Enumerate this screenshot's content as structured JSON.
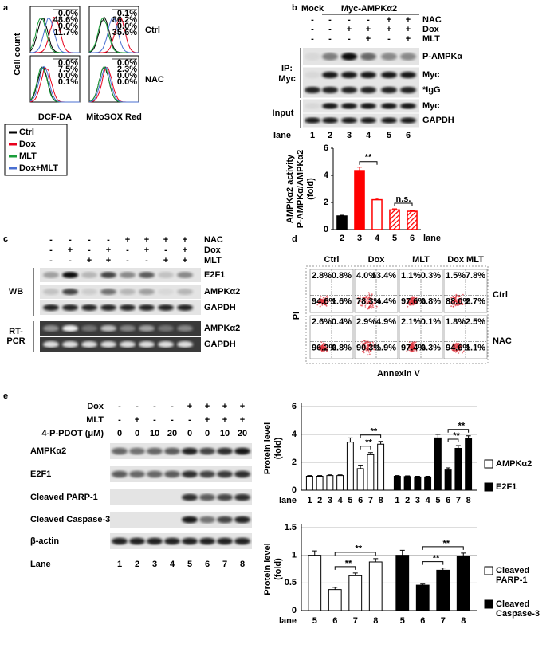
{
  "panels": {
    "a": {
      "label": "a",
      "y_label": "Cell count",
      "rows": [
        "Ctrl",
        "NAC"
      ],
      "columns": [
        "DCF-DA",
        "MitoSOX Red"
      ],
      "percentages": [
        [
          [
            "0.0%",
            "48.6%",
            "0.0%",
            "11.7%"
          ],
          [
            "0.1%",
            "86.2%",
            "0.0%",
            "35.6%"
          ]
        ],
        [
          [
            "0.0%",
            "7.5%",
            "0.0%",
            "0.1%"
          ],
          [
            "0.0%",
            "2.3%",
            "0.0%",
            "0.0%"
          ]
        ]
      ],
      "legend": [
        {
          "name": "Ctrl",
          "color": "#000000"
        },
        {
          "name": "Dox",
          "color": "#e8001c"
        },
        {
          "name": "MLT",
          "color": "#1a9e3a"
        },
        {
          "name": "Dox+MLT",
          "color": "#4a6fd1"
        }
      ]
    },
    "b": {
      "label": "b",
      "mock": "Mock",
      "construct": "Myc-AMPKα2",
      "treatments": [
        {
          "name": "NAC",
          "signs": [
            "-",
            "-",
            "-",
            "-",
            "+",
            "+"
          ]
        },
        {
          "name": "Dox",
          "signs": [
            "-",
            "-",
            "+",
            "+",
            "+",
            "+"
          ]
        },
        {
          "name": "MLT",
          "signs": [
            "-",
            "-",
            "-",
            "+",
            "-",
            "+"
          ]
        }
      ],
      "ip_label": [
        "IP:",
        "Myc"
      ],
      "input_label": "Input",
      "blot_rows": [
        "P-AMPKα",
        "Myc",
        "*IgG",
        "Myc",
        "GAPDH"
      ],
      "lane_label": "lane",
      "lanes": [
        "1",
        "2",
        "3",
        "4",
        "5",
        "6"
      ]
    },
    "c": {
      "label": "c",
      "treatments": [
        {
          "name": "NAC",
          "signs": [
            "-",
            "-",
            "-",
            "-",
            "+",
            "+",
            "+",
            "+"
          ]
        },
        {
          "name": "Dox",
          "signs": [
            "-",
            "+",
            "-",
            "+",
            "-",
            "+",
            "-",
            "+"
          ]
        },
        {
          "name": "MLT",
          "signs": [
            "-",
            "-",
            "+",
            "+",
            "-",
            "-",
            "+",
            "+"
          ]
        }
      ],
      "groups": [
        "WB",
        "RT-PCR"
      ],
      "blot_rows": [
        "E2F1",
        "AMPKα2",
        "GAPDH",
        "AMPKα2",
        "GAPDH"
      ]
    },
    "d": {
      "label": "d",
      "columns": [
        "Ctrl",
        "Dox",
        "MLT",
        "Dox MLT"
      ],
      "rows": [
        "Ctrl",
        "NAC"
      ],
      "quadrants": [
        [
          [
            "2.8%",
            "0.8%",
            "94.6%",
            "1.6%"
          ],
          [
            "4.0%",
            "13.4%",
            "78.3%",
            "4.4%"
          ],
          [
            "1.1%",
            "0.3%",
            "97.6%",
            "0.8%"
          ],
          [
            "1.5%",
            "7.8%",
            "88.0%",
            "2.7%"
          ]
        ],
        [
          [
            "2.6%",
            "0.4%",
            "96.2%",
            "0.8%"
          ],
          [
            "2.9%",
            "4.9%",
            "90.3%",
            "1.9%"
          ],
          [
            "2.1%",
            "0.1%",
            "97.4%",
            "0.3%"
          ],
          [
            "1.8%",
            "2.5%",
            "94.6%",
            "1.1%"
          ]
        ]
      ],
      "y_label": "PI",
      "x_label": "Annexin V"
    },
    "e": {
      "label": "e",
      "treatments": [
        {
          "name": "Dox",
          "signs": [
            "-",
            "-",
            "-",
            "-",
            "+",
            "+",
            "+",
            "+"
          ]
        },
        {
          "name": "MLT",
          "signs": [
            "-",
            "+",
            "-",
            "-",
            "-",
            "+",
            "+",
            "+"
          ]
        },
        {
          "name": "4-P-PDOT (μM)",
          "signs": [
            "0",
            "0",
            "10",
            "20",
            "0",
            "0",
            "10",
            "20"
          ]
        }
      ],
      "blot_rows": [
        "AMPKα2",
        "E2F1",
        "Cleaved PARP-1",
        "Cleaved Caspase-3",
        "β-actin"
      ],
      "lane_label": "Lane",
      "lanes": [
        "1",
        "2",
        "3",
        "4",
        "5",
        "6",
        "7",
        "8"
      ]
    }
  },
  "chart_data": [
    {
      "type": "bar",
      "y_label": [
        "AMPKα2 activity",
        "P-AMPKα/AMPKα2",
        "(fold)"
      ],
      "x_label": "lane",
      "categories": [
        "2",
        "3",
        "4",
        "5",
        "6"
      ],
      "values": [
        1.0,
        4.35,
        2.2,
        1.45,
        1.35
      ],
      "errors": [
        0.06,
        0.25,
        0.1,
        0.08,
        0.06
      ],
      "colors": [
        "#000000",
        "#ff0000",
        "#ff0000",
        "#ff0000",
        "#ff0000"
      ],
      "fills": [
        "solid",
        "solid",
        "none",
        "hatched",
        "hatched"
      ],
      "ylim": [
        0,
        6
      ],
      "yticks": [
        0,
        2,
        4,
        6
      ],
      "grid": false,
      "annotations": [
        {
          "text": "**",
          "between": [
            "3",
            "4"
          ]
        },
        {
          "text": "n.s.",
          "between": [
            "5",
            "6"
          ]
        }
      ]
    },
    {
      "type": "grouped-bar",
      "y_label": [
        "Protein level",
        "(fold)"
      ],
      "x_label": "lane",
      "categories": [
        "1",
        "2",
        "3",
        "4",
        "5",
        "6",
        "7",
        "8"
      ],
      "series": [
        {
          "name": "AMPKα2",
          "color": "#ffffff",
          "values": [
            1.0,
            1.0,
            1.05,
            1.05,
            3.45,
            1.55,
            2.55,
            3.3
          ],
          "errors": [
            0.05,
            0.05,
            0.05,
            0.05,
            0.3,
            0.2,
            0.15,
            0.2
          ]
        },
        {
          "name": "E2F1",
          "color": "#000000",
          "values": [
            1.0,
            0.98,
            0.95,
            0.95,
            3.75,
            1.45,
            3.0,
            3.7
          ],
          "errors": [
            0.05,
            0.05,
            0.05,
            0.05,
            0.25,
            0.15,
            0.2,
            0.2
          ]
        }
      ],
      "ylim": [
        0,
        6
      ],
      "yticks": [
        0,
        2,
        4,
        6
      ],
      "grid": true,
      "annotations": [
        {
          "text": "**",
          "series": "AMPKα2",
          "between": [
            "6",
            "7"
          ]
        },
        {
          "text": "**",
          "series": "AMPKα2",
          "between": [
            "6",
            "8"
          ]
        },
        {
          "text": "**",
          "series": "E2F1",
          "between": [
            "6",
            "7"
          ]
        },
        {
          "text": "**",
          "series": "E2F1",
          "between": [
            "6",
            "8"
          ]
        }
      ]
    },
    {
      "type": "grouped-bar",
      "y_label": [
        "Protein level",
        "(fold)"
      ],
      "x_label": "lane",
      "categories": [
        "5",
        "6",
        "7",
        "8"
      ],
      "series": [
        {
          "name": "Cleaved PARP-1",
          "color": "#ffffff",
          "values": [
            1.0,
            0.38,
            0.63,
            0.88
          ],
          "errors": [
            0.08,
            0.04,
            0.05,
            0.06
          ]
        },
        {
          "name": "Cleaved Caspase-3",
          "color": "#000000",
          "values": [
            1.0,
            0.46,
            0.73,
            0.98
          ],
          "errors": [
            0.09,
            0.02,
            0.04,
            0.06
          ]
        }
      ],
      "ylim": [
        0,
        1.5
      ],
      "yticks": [
        0,
        0.5,
        1,
        1.5
      ],
      "grid": true,
      "annotations": [
        {
          "text": "**",
          "series": "Cleaved PARP-1",
          "between": [
            "6",
            "7"
          ]
        },
        {
          "text": "**",
          "series": "Cleaved PARP-1",
          "between": [
            "6",
            "8"
          ]
        },
        {
          "text": "**",
          "series": "Cleaved Caspase-3",
          "between": [
            "6",
            "7"
          ]
        },
        {
          "text": "**",
          "series": "Cleaved Caspase-3",
          "between": [
            "6",
            "8"
          ]
        }
      ]
    }
  ]
}
